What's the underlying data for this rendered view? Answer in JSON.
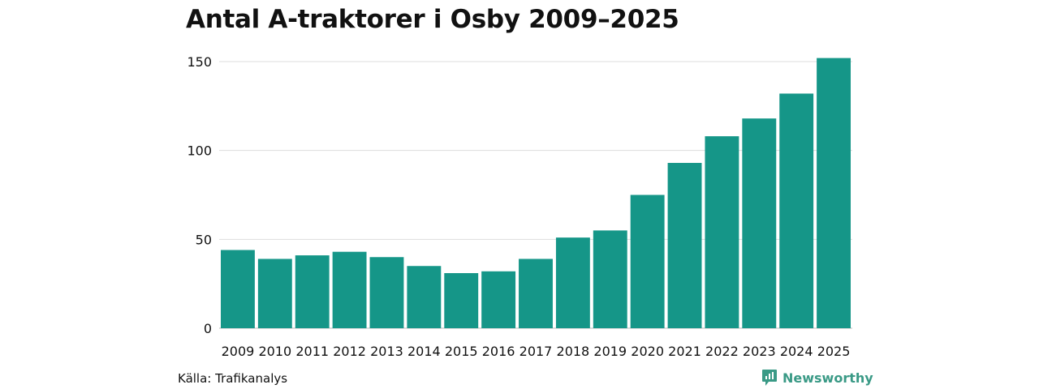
{
  "colors": {
    "bar": "#159688",
    "grid": "#dddddd",
    "axis": "#bbbbbb",
    "brand": "#3a9a86"
  },
  "chart_data": {
    "type": "bar",
    "title": "Antal A-traktorer i Osby 2009–2025",
    "xlabel": "",
    "ylabel": "",
    "categories": [
      "2009",
      "2010",
      "2011",
      "2012",
      "2013",
      "2014",
      "2015",
      "2016",
      "2017",
      "2018",
      "2019",
      "2020",
      "2021",
      "2022",
      "2023",
      "2024",
      "2025"
    ],
    "values": [
      44,
      39,
      41,
      43,
      40,
      35,
      31,
      32,
      39,
      51,
      55,
      75,
      93,
      108,
      118,
      132,
      152
    ],
    "ylim": [
      0,
      150
    ],
    "yticks": [
      0,
      50,
      100,
      150
    ],
    "grid": true,
    "legend": "none"
  },
  "footer": {
    "source": "Källa: Trafikanalys",
    "brand": "Newsworthy",
    "brand_icon": "newsworthy-logo-icon"
  }
}
